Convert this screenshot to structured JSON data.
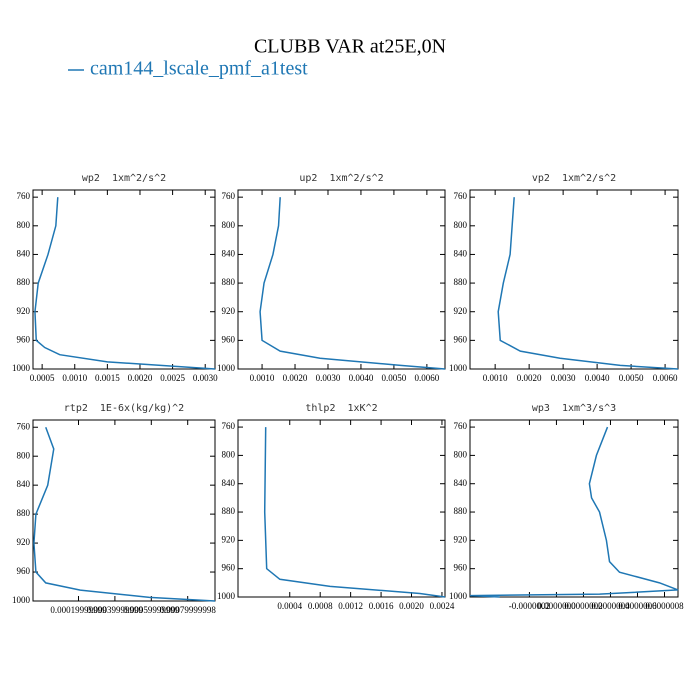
{
  "title": "CLUBB VAR at25E,0N",
  "legend": {
    "label": "cam144_lscale_pmf_a1test",
    "color": "#1f77b4"
  },
  "chart_data": [
    {
      "type": "line",
      "title": "wp2  1xm^2/s^2",
      "y": [
        760,
        800,
        840,
        880,
        920,
        960,
        970,
        980,
        990,
        1000
      ],
      "series": [
        {
          "color": "#1f77b4",
          "values": [
            0.00074,
            0.00071,
            0.00059,
            0.00044,
            0.00039,
            0.00041,
            0.00054,
            0.00077,
            0.0015,
            0.00315
          ]
        }
      ],
      "xlim": [
        0.00036,
        0.00315
      ],
      "ylim": [
        1000,
        750
      ],
      "xticks": [
        0.0005,
        {
          "value": 0.001,
          "label": "0.0010"
        },
        0.0015,
        {
          "value": 0.002,
          "label": "0.0020"
        },
        0.0025,
        {
          "value": 0.003,
          "label": "0.0030"
        }
      ],
      "yticks": [
        760,
        800,
        840,
        880,
        920,
        960,
        1000
      ]
    },
    {
      "type": "line",
      "title": "up2  1xm^2/s^2",
      "y": [
        760,
        800,
        840,
        880,
        920,
        960,
        975,
        985,
        995,
        1000
      ],
      "series": [
        {
          "color": "#1f77b4",
          "values": [
            0.00155,
            0.0015,
            0.00133,
            0.00106,
            0.00094,
            0.001,
            0.00155,
            0.00276,
            0.0052,
            0.00655
          ]
        }
      ],
      "xlim": [
        0.00027,
        0.00655
      ],
      "ylim": [
        1000,
        750
      ],
      "xticks": [
        {
          "value": 0.001,
          "label": "0.0010"
        },
        {
          "value": 0.002,
          "label": "0.0020"
        },
        {
          "value": 0.003,
          "label": "0.0030"
        },
        {
          "value": 0.004,
          "label": "0.0040"
        },
        {
          "value": 0.005,
          "label": "0.0050"
        },
        {
          "value": 0.006,
          "label": "0.0060"
        }
      ],
      "yticks": [
        760,
        800,
        840,
        880,
        920,
        960,
        1000
      ]
    },
    {
      "type": "line",
      "title": "vp2  1xm^2/s^2",
      "y": [
        760,
        800,
        840,
        880,
        920,
        960,
        975,
        985,
        995,
        1000
      ],
      "series": [
        {
          "color": "#1f77b4",
          "values": [
            0.00156,
            0.0015,
            0.00144,
            0.00124,
            0.00109,
            0.00115,
            0.00174,
            0.00291,
            0.00468,
            0.00638
          ]
        }
      ],
      "xlim": [
        0.00026,
        0.00638
      ],
      "ylim": [
        1000,
        750
      ],
      "xticks": [
        {
          "value": 0.001,
          "label": "0.0010"
        },
        {
          "value": 0.002,
          "label": "0.0020"
        },
        {
          "value": 0.003,
          "label": "0.0030"
        },
        {
          "value": 0.004,
          "label": "0.0040"
        },
        {
          "value": 0.005,
          "label": "0.0050"
        },
        {
          "value": 0.006,
          "label": "0.0060"
        }
      ],
      "yticks": [
        760,
        800,
        840,
        880,
        920,
        960,
        1000
      ]
    },
    {
      "type": "line",
      "title": "rtp2  1E-6x(kg/kg)^2",
      "y": [
        760,
        790,
        840,
        880,
        920,
        960,
        975,
        985,
        995,
        1000
      ],
      "series": [
        {
          "color": "#1f77b4",
          "values": [
            2e-05,
            6.4e-05,
            3.1e-05,
            -3.4e-05,
            -4.5e-05,
            -3.4e-05,
            2e-05,
            0.00021,
            0.00059,
            0.00095
          ]
        }
      ],
      "xlim": [
        -5e-05,
        0.00095
      ],
      "ylim": [
        1000,
        750
      ],
      "xticks": [
        0.00019999999,
        0.00039999999,
        0.00059999999,
        0.00079999998
      ],
      "yticks": [
        760,
        800,
        840,
        880,
        920,
        960,
        1000
      ]
    },
    {
      "type": "line",
      "title": "thlp2  1xK^2",
      "y": [
        760,
        880,
        960,
        975,
        985,
        995,
        1000
      ],
      "series": [
        {
          "color": "#1f77b4",
          "values": [
            8.4e-05,
            7.1e-05,
            9.7e-05,
            0.00027,
            0.00093,
            0.00211,
            0.00244
          ]
        }
      ],
      "xlim": [
        -0.00028,
        0.00244
      ],
      "ylim": [
        1000,
        750
      ],
      "xticks": [
        0.0004,
        0.0008,
        0.0012,
        0.0016,
        {
          "value": 0.002,
          "label": "0.0020"
        },
        0.0024
      ],
      "yticks": [
        760,
        800,
        840,
        880,
        920,
        960,
        1000
      ]
    },
    {
      "type": "line",
      "title": "wp3  1xm^3/s^3",
      "y": [
        760,
        800,
        840,
        860,
        880,
        920,
        950,
        965,
        980,
        990,
        996,
        998,
        1000
      ],
      "series": [
        {
          "color": "#1f77b4",
          "values": [
            3.78e-07,
            2.96e-07,
            2.44e-07,
            2.6e-07,
            3.19e-07,
            3.7e-07,
            3.93e-07,
            4.67e-07,
            7.63e-07,
            9e-07,
            3.2e-07,
            -6.4e-07,
            -4.2e-07
          ]
        }
      ],
      "xlim": [
        -6.4e-07,
        9e-07
      ],
      "ylim": [
        1000,
        750
      ],
      "xticks": [
        {
          "value": -2e-07,
          "label": "-0.0000002"
        },
        {
          "value": 0,
          "label": "0.0000000"
        },
        {
          "value": 2e-07,
          "label": "0.0000002"
        },
        {
          "value": 4e-07,
          "label": "0.0000004"
        },
        {
          "value": 6e-07,
          "label": "0.0000006"
        },
        {
          "value": 8e-07,
          "label": "0.0000008"
        }
      ],
      "yticks": [
        760,
        800,
        840,
        880,
        920,
        960,
        1000
      ]
    }
  ]
}
